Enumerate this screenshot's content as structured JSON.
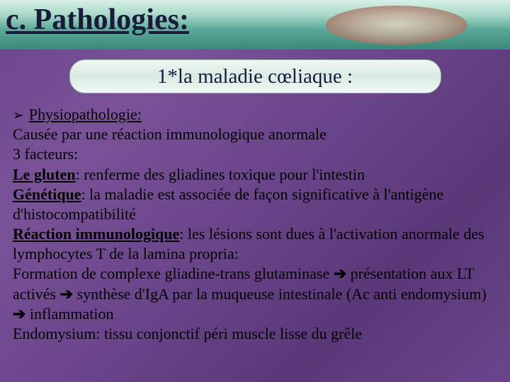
{
  "header": {
    "title": "c. Pathologies:"
  },
  "subtitle": "1*la maladie cœliaque :",
  "content": {
    "section_heading": "Physiopathologie:",
    "cause_line": "Causée par une réaction immunologique anormale",
    "factors_intro": "3 facteurs:",
    "factor1_label": "Le gluten",
    "factor1_text": ": renferme des gliadines toxique pour l'intestin",
    "factor2_label": "Génétique",
    "factor2_text": ": la maladie est associée de façon significative à l'antigène d'histocompatibilité",
    "factor3_label": "Réaction immunologique",
    "factor3_text": ": les lésions sont dues à l'activation anormale des lymphocytes T de la lamina propria:",
    "chain1": "Formation de complexe gliadine-trans glutaminase ",
    "chain2": " présentation aux LT activés ",
    "chain3": " synthèse d'IgA par la muqueuse intestinale (Ac anti endomysium) ",
    "chain4": " inflammation",
    "endomysium": "Endomysium: tissu conjonctif péri muscle lisse du grêle",
    "arrow": "➔"
  },
  "colors": {
    "text": "#000000",
    "header_text": "#1a1a3a",
    "background_start": "#6a458a",
    "subtitle_bg": "#e4f0ea"
  }
}
